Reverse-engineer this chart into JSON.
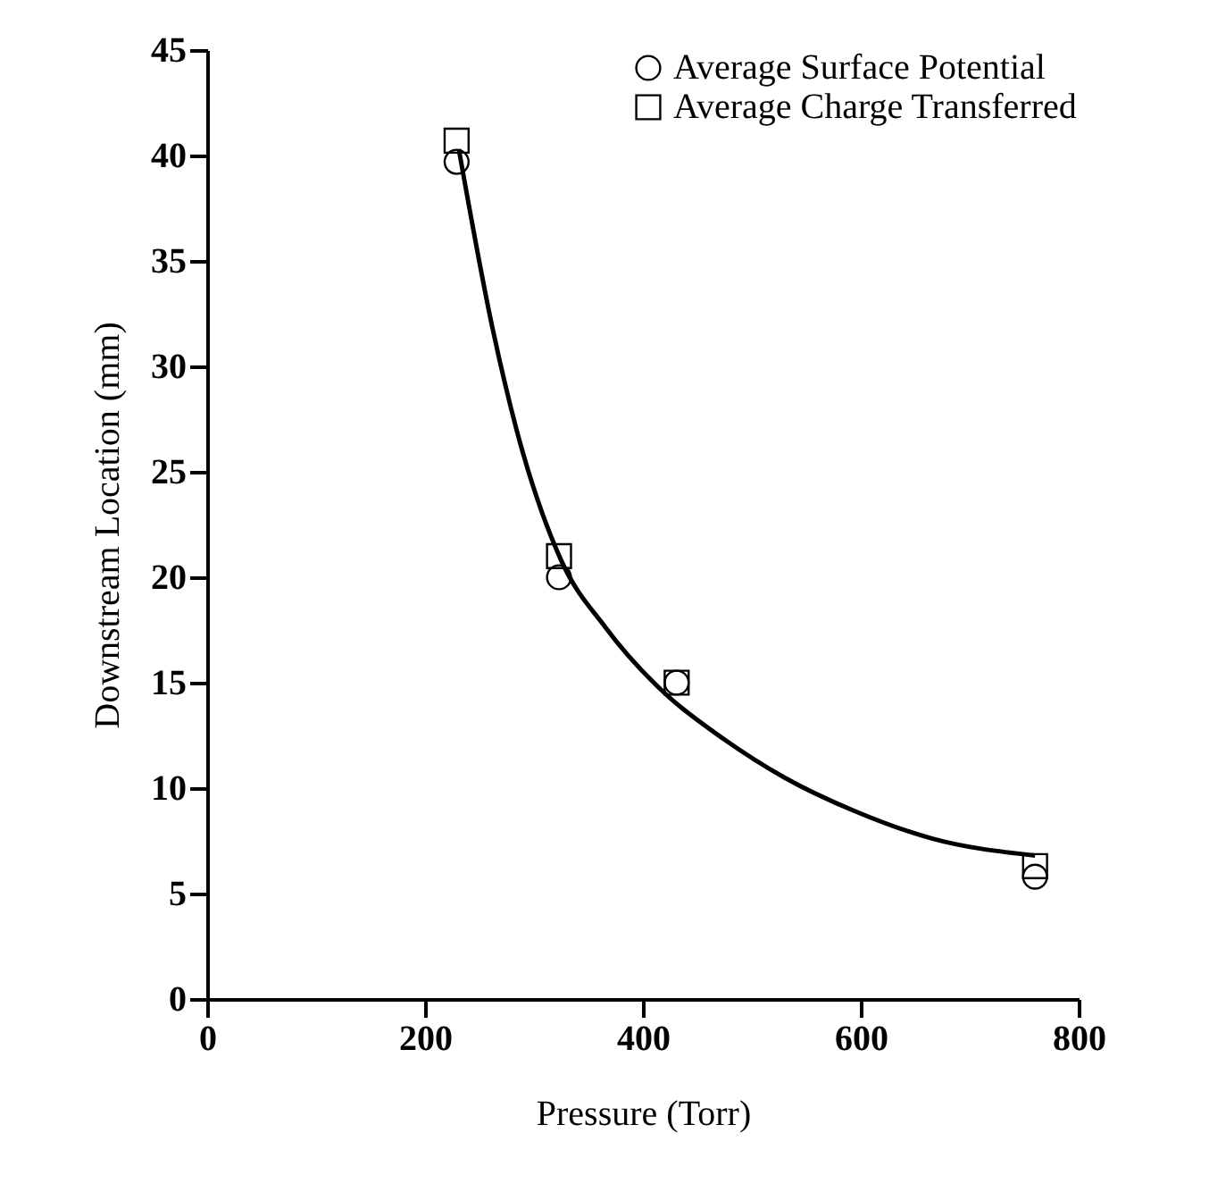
{
  "chart_data": {
    "type": "scatter",
    "xlabel": "Pressure (Torr)",
    "ylabel": "Downstream Location (mm)",
    "xlim": [
      0,
      800
    ],
    "xticks": [
      0,
      200,
      400,
      600,
      800
    ],
    "ylim": [
      0,
      45
    ],
    "yticks": [
      0,
      5,
      10,
      15,
      20,
      25,
      30,
      35,
      40,
      45
    ],
    "grid": false,
    "legend": "top right",
    "series": [
      {
        "name": "Average Surface Potential",
        "marker": "circle",
        "color": "#000000",
        "x": [
          229,
          323,
          431,
          760
        ],
        "values": [
          39.7,
          20.0,
          15.0,
          5.8
        ]
      },
      {
        "name": "Average Charge Transferred",
        "marker": "square",
        "color": "#000000",
        "x": [
          229,
          323,
          431,
          760
        ],
        "values": [
          40.7,
          21.0,
          15.0,
          6.3
        ]
      },
      {
        "type": "line",
        "color": "#000000",
        "line_style": "solid",
        "x": [
          231,
          262,
          284,
          325,
          366,
          420,
          475,
          530,
          595,
          666,
          760
        ],
        "values": [
          40.3,
          31.8,
          27.0,
          20.8,
          17.6,
          14.5,
          12.3,
          10.5,
          8.9,
          7.6,
          6.8
        ]
      }
    ]
  }
}
